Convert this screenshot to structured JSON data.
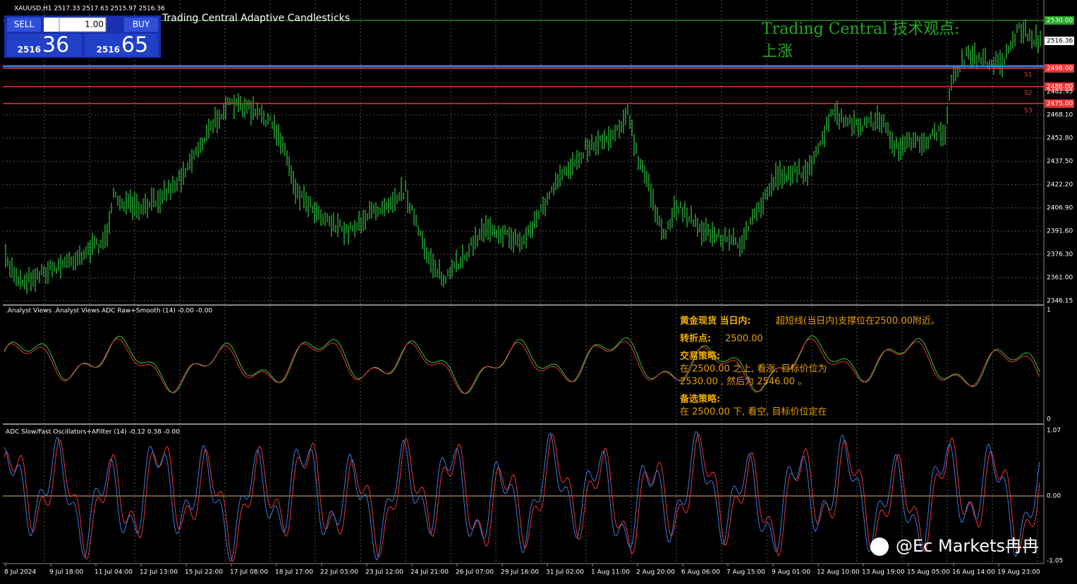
{
  "header": {
    "symbol": "XAUUSD,H1 2517.33 2517.63 2515.97 2516.36",
    "indicator": "Trading Central Adaptive Candlesticks"
  },
  "trade_panel": {
    "sell": "SELL",
    "lots": "1.00",
    "buy": "BUY",
    "sell_price_small": "2516",
    "sell_price_big": "36",
    "buy_price_small": "2516",
    "buy_price_big": "65"
  },
  "annotation": {
    "title": "Trading Central 技术观点:",
    "trend": "上涨"
  },
  "levels": [
    "S1",
    "S2",
    "S3"
  ],
  "price_axis": [
    "2530.00",
    "2516.36",
    "2498.00",
    "2486.00",
    "2482.95",
    "2475.00",
    "2468.10",
    "2452.80",
    "2437.50",
    "2422.20",
    "2406.90",
    "2391.60",
    "2376.30",
    "2361.00",
    "2346.15"
  ],
  "indicator1": {
    "title": ".Analyst Views .Analyst Views ADC Raw+Smooth (14) -0.00 -0.00",
    "axis": [
      "1",
      "0"
    ],
    "note": [
      "黄金现货 当日内:",
      "超短线(当日内)支撑位在2500.00附近。",
      "转折点:",
      "2500.00",
      "交易策略:",
      "在 2500.00 之上, 看涨, 目标价位为",
      "2530.00 , 然后为 2546.00 。",
      "备选策略:",
      "在 2500.00 下, 看空, 目标价位定在"
    ]
  },
  "indicator2": {
    "title": "ADC Slow/Fast Oscillators+AFilter (14) -0.12 0.38 -0.00",
    "axis": [
      "1.07",
      "0.00",
      "-1.05"
    ]
  },
  "time_axis": [
    "8 Jul 2024",
    "9 Jul 18:00",
    "11 Jul 04:00",
    "12 Jul 13:00",
    "15 Jul 22:00",
    "17 Jul 08:00",
    "18 Jul 17:00",
    "22 Jul 03:00",
    "23 Jul 12:00",
    "24 Jul 21:00",
    "26 Jul 07:00",
    "29 Jul 16:00",
    "31 Jul 02:00",
    "1 Aug 11:00",
    "2 Aug 20:00",
    "6 Aug 06:00",
    "7 Aug 15:00",
    "9 Aug 01:00",
    "12 Aug 10:00",
    "13 Aug 19:00",
    "15 Aug 05:00",
    "16 Aug 14:00",
    "19 Aug 23:00"
  ],
  "watermark": "@Ec Markets冉冉"
}
